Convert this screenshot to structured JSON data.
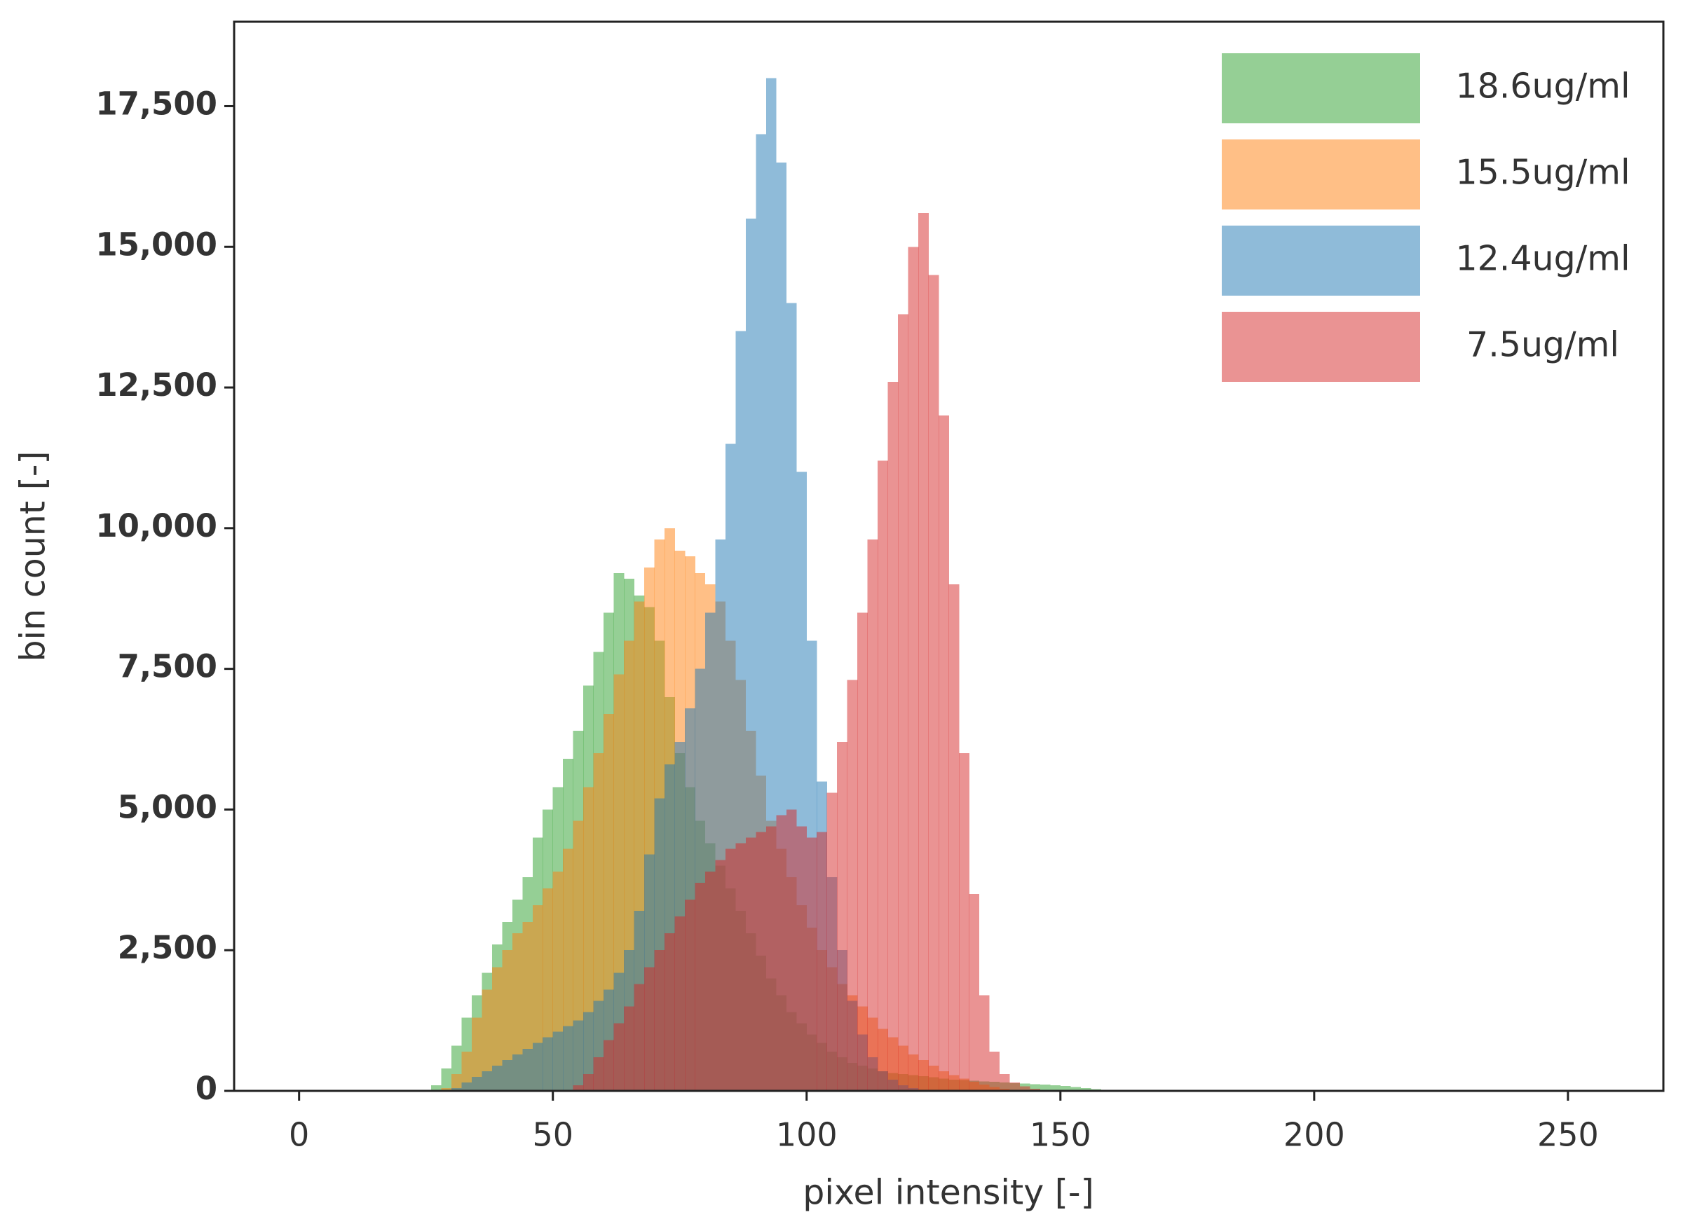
{
  "chart_data": {
    "type": "histogram",
    "x_label": "pixel intensity [-]",
    "y_label": "bin count [-]",
    "bins": [
      26,
      28,
      30,
      32,
      34,
      36,
      38,
      40,
      42,
      44,
      46,
      48,
      50,
      52,
      54,
      56,
      58,
      60,
      62,
      64,
      66,
      68,
      70,
      72,
      74,
      76,
      78,
      80,
      82,
      84,
      86,
      88,
      90,
      92,
      94,
      96,
      98,
      100,
      102,
      104,
      106,
      108,
      110,
      112,
      114,
      116,
      118,
      120,
      122,
      124,
      126,
      128,
      130,
      132,
      134,
      136,
      138,
      140,
      142,
      144,
      146,
      148,
      150,
      152,
      154,
      156,
      158,
      160
    ],
    "series": [
      {
        "name": "18.6ug/ml",
        "color": "#2ca02c",
        "values": [
          100,
          400,
          800,
          1300,
          1700,
          2100,
          2600,
          3000,
          3400,
          3800,
          4500,
          5000,
          5400,
          5900,
          6400,
          7200,
          7800,
          8500,
          9200,
          9100,
          8800,
          8600,
          8000,
          7000,
          6000,
          5400,
          4800,
          4400,
          4000,
          3600,
          3200,
          2800,
          2400,
          2000,
          1700,
          1400,
          1200,
          1000,
          850,
          700,
          600,
          500,
          450,
          400,
          350,
          320,
          300,
          280,
          260,
          240,
          220,
          200,
          190,
          180,
          170,
          160,
          150,
          140,
          130,
          120,
          110,
          100,
          90,
          70,
          50,
          30,
          10
        ]
      },
      {
        "name": "15.5ug/ml",
        "color": "#ff7f0e",
        "values": [
          0,
          50,
          300,
          700,
          1300,
          1800,
          2200,
          2500,
          2800,
          3000,
          3300,
          3600,
          3900,
          4300,
          4800,
          5400,
          6000,
          6700,
          7400,
          8000,
          8700,
          9300,
          9800,
          10000,
          9600,
          9500,
          9200,
          9000,
          8700,
          8000,
          7300,
          6400,
          5600,
          4800,
          4300,
          3800,
          3300,
          2900,
          2500,
          2200,
          1900,
          1700,
          1500,
          1300,
          1100,
          950,
          800,
          650,
          550,
          450,
          350,
          280,
          220,
          160,
          110,
          70,
          40,
          20,
          0,
          0,
          0,
          0,
          0,
          0,
          0,
          0,
          0
        ]
      },
      {
        "name": "12.4ug/ml",
        "color": "#1f77b4",
        "values": [
          0,
          0,
          50,
          150,
          250,
          350,
          450,
          550,
          650,
          750,
          850,
          950,
          1050,
          1150,
          1250,
          1400,
          1600,
          1800,
          2100,
          2500,
          3200,
          4200,
          5200,
          5800,
          6200,
          6800,
          7500,
          8500,
          9800,
          11500,
          13500,
          15500,
          17000,
          18000,
          16500,
          14000,
          11000,
          8000,
          5500,
          3800,
          2500,
          1600,
          1000,
          600,
          350,
          200,
          100,
          50,
          20,
          0,
          0,
          0,
          0,
          0,
          0,
          0,
          0,
          0,
          0,
          0,
          0,
          0,
          0,
          0,
          0,
          0,
          0
        ]
      },
      {
        "name": "7.5ug/ml",
        "color": "#d62728",
        "values": [
          0,
          0,
          0,
          0,
          0,
          0,
          0,
          0,
          0,
          0,
          0,
          0,
          0,
          0,
          100,
          300,
          600,
          900,
          1200,
          1500,
          1900,
          2200,
          2500,
          2800,
          3100,
          3400,
          3700,
          3900,
          4100,
          4300,
          4400,
          4500,
          4600,
          4700,
          4900,
          5000,
          4700,
          4500,
          4600,
          5300,
          6200,
          7300,
          8500,
          9800,
          11200,
          12600,
          13800,
          15000,
          15600,
          14500,
          12000,
          9000,
          6000,
          3500,
          1700,
          700,
          300,
          150,
          80,
          40,
          20,
          0,
          0,
          0,
          0,
          0,
          0
        ]
      }
    ],
    "alpha": 0.5,
    "xlim": [
      -12.8,
      268.8
    ],
    "ylim": [
      0,
      19000
    ],
    "xticks": [
      0,
      50,
      100,
      150,
      200,
      250
    ],
    "yticks": [
      0,
      {
        "value": 2500,
        "label": "2,500"
      },
      {
        "value": 5000,
        "label": "5,000"
      },
      {
        "value": 7500,
        "label": "7,500"
      },
      {
        "value": 10000,
        "label": "10,000"
      },
      {
        "value": 12500,
        "label": "12,500"
      },
      {
        "value": 15000,
        "label": "15,000"
      },
      {
        "value": 17500,
        "label": "17,500"
      }
    ],
    "legend": "upper right"
  }
}
